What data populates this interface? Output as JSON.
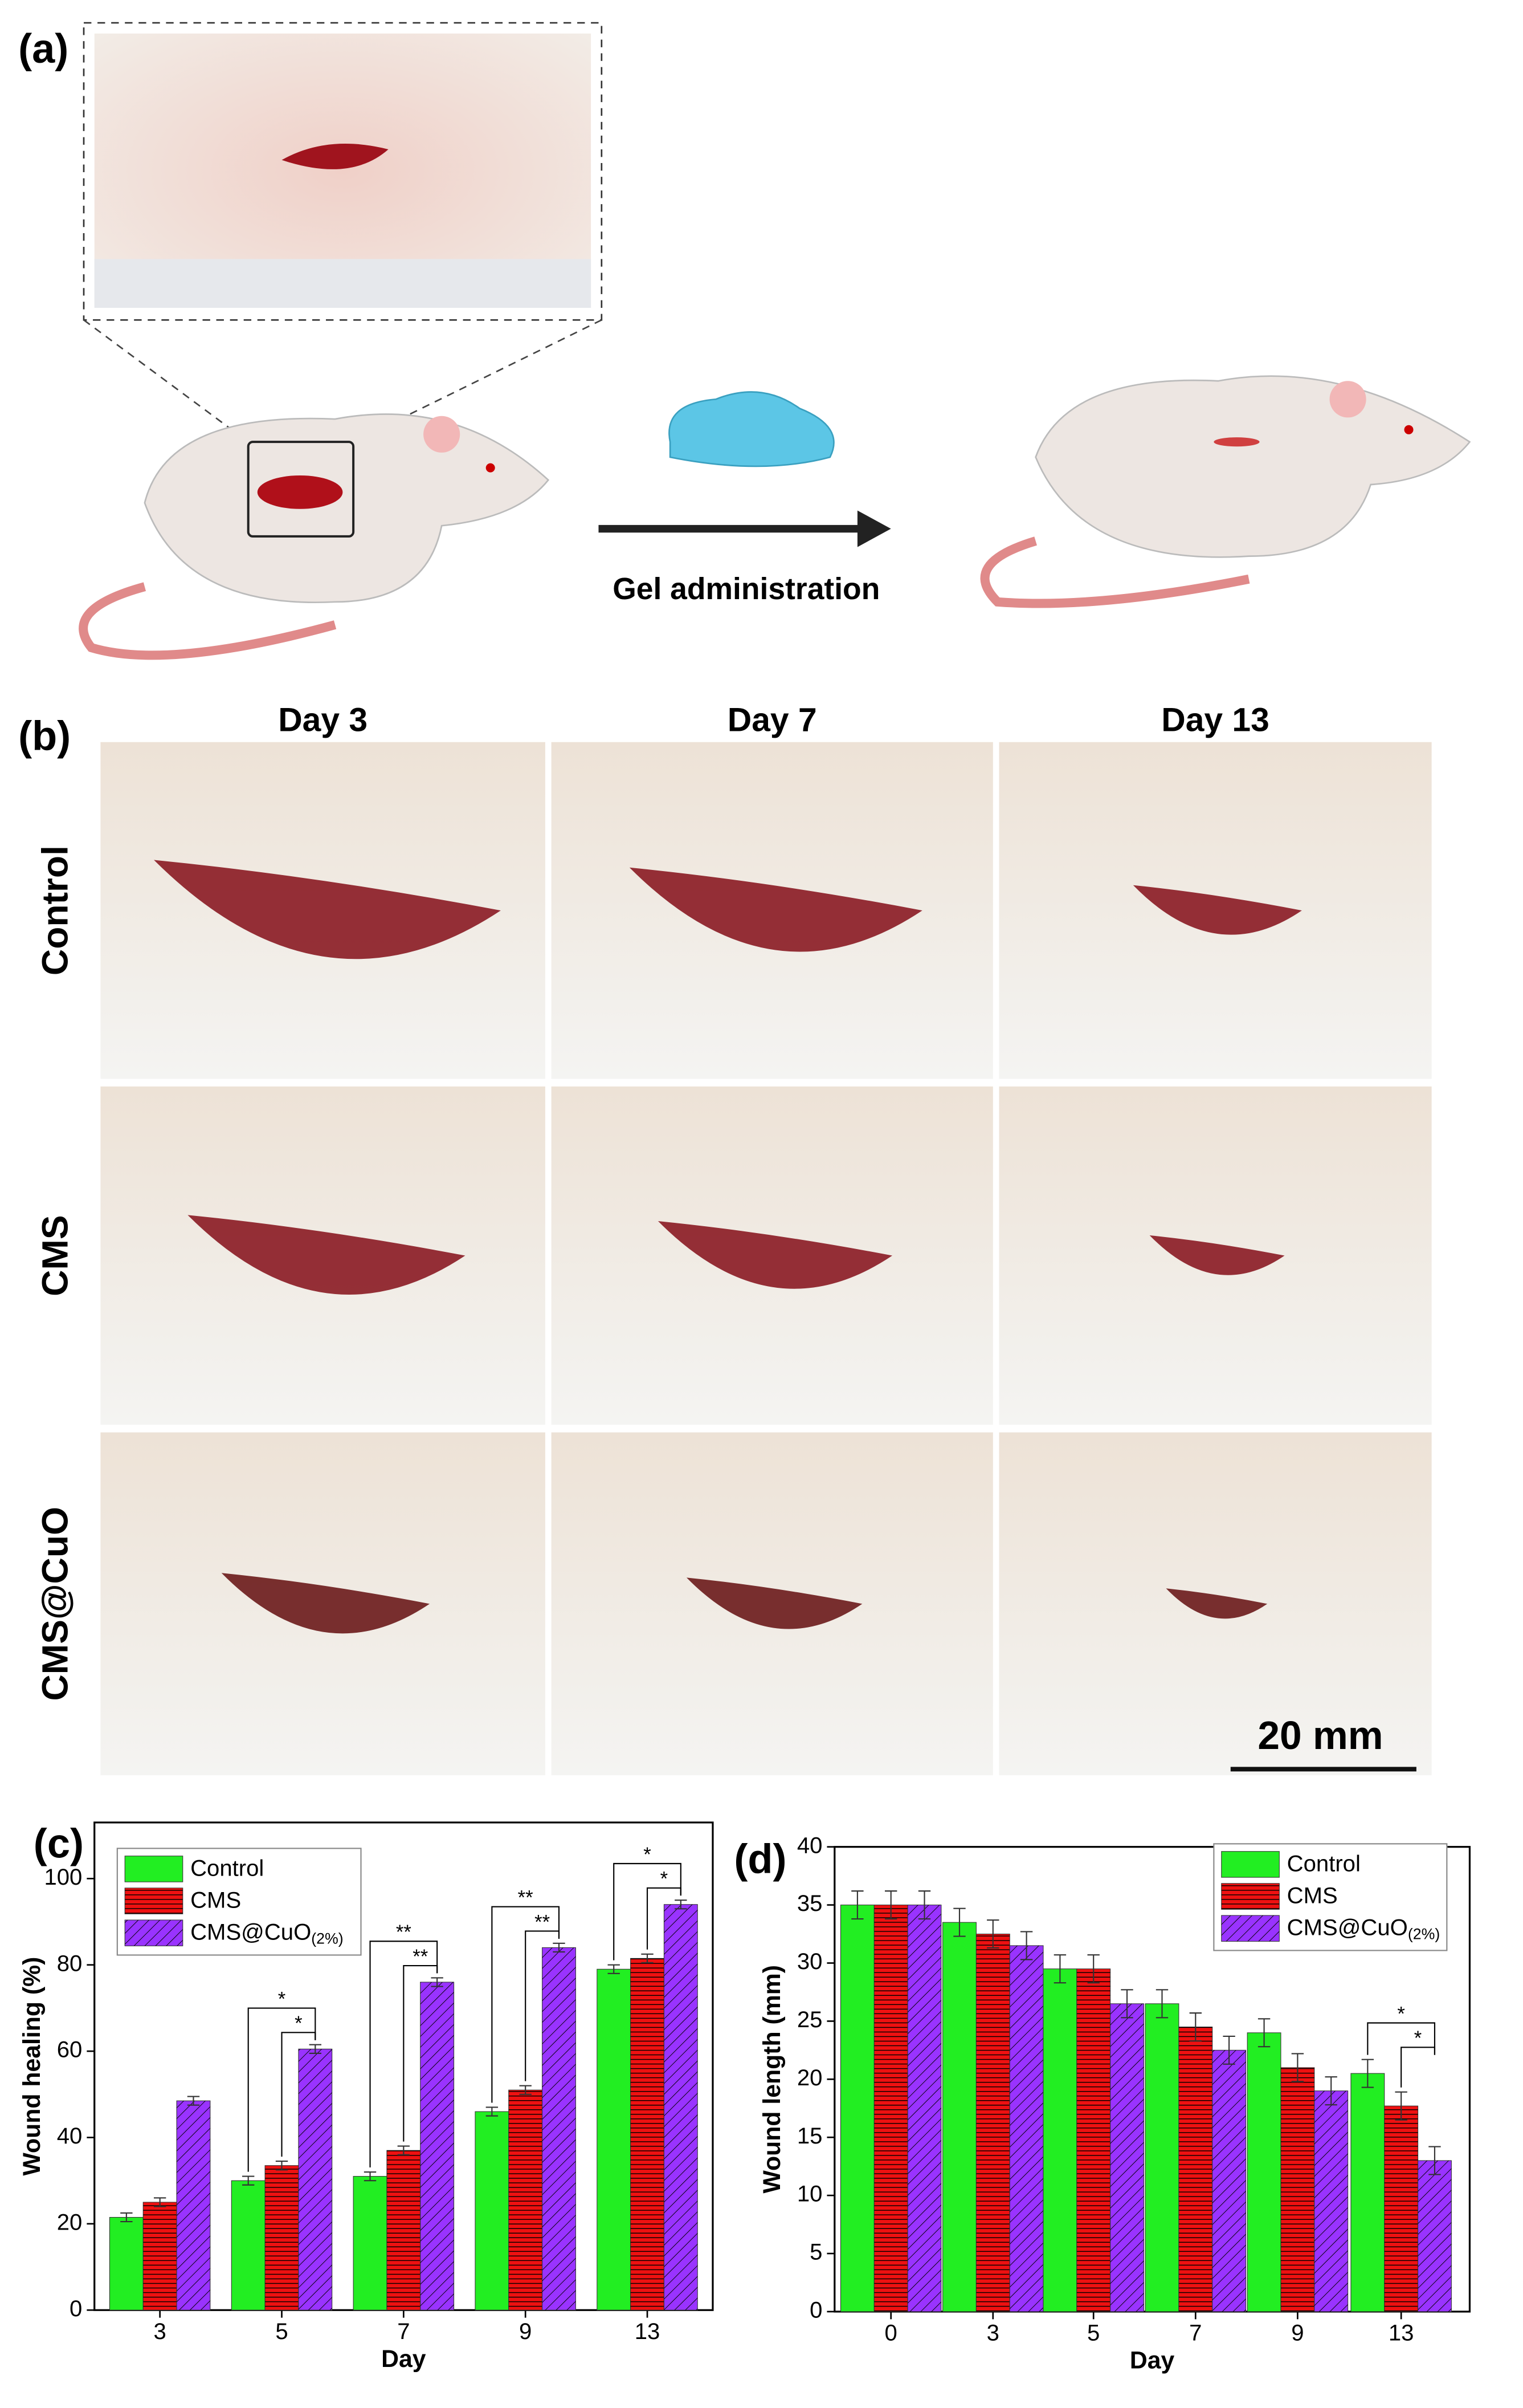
{
  "figure": {
    "panel_a": "(a)",
    "gel_label": "Gel administration",
    "panel_b": "(b)",
    "days": [
      "Day 3",
      "Day 7",
      "Day 13"
    ],
    "groups": [
      "Control",
      "CMS",
      "CMS@CuO"
    ],
    "scale_bar": "20 mm"
  },
  "chart_data": [
    {
      "type": "bar",
      "panel": "(c)",
      "xlabel": "Day",
      "ylabel": "Wound healing (%)",
      "categories": [
        "3",
        "5",
        "7",
        "9",
        "13"
      ],
      "series": [
        {
          "name": "Control",
          "color": "#22ee22",
          "values": [
            21.5,
            30,
            31,
            46,
            79
          ],
          "errors": [
            1,
            1,
            1,
            1,
            1
          ]
        },
        {
          "name": "CMS",
          "color": "#ee1111",
          "values": [
            25,
            33.5,
            37,
            51,
            81.5
          ],
          "errors": [
            1,
            1,
            1,
            1,
            1
          ]
        },
        {
          "name": "CMS@CuO(2%)",
          "color": "#9933ff",
          "values": [
            48.5,
            60.5,
            76,
            84,
            94
          ],
          "errors": [
            1,
            1,
            1,
            1,
            1
          ]
        }
      ],
      "ylim": [
        0,
        113
      ],
      "yticks": [
        0,
        20,
        40,
        60,
        80,
        100
      ],
      "legend": "upper left",
      "annotations": [
        {
          "category": "5",
          "outer": "*",
          "inner": "*"
        },
        {
          "category": "7",
          "outer": "**",
          "inner": "**"
        },
        {
          "category": "9",
          "outer": "**",
          "inner": "**"
        },
        {
          "category": "13",
          "outer": "*",
          "inner": "*"
        }
      ]
    },
    {
      "type": "bar",
      "panel": "(d)",
      "xlabel": "Day",
      "ylabel": "Wound length (mm)",
      "categories": [
        "0",
        "3",
        "5",
        "7",
        "9",
        "13"
      ],
      "series": [
        {
          "name": "Control",
          "color": "#22ee22",
          "values": [
            35,
            33.5,
            29.5,
            26.5,
            24,
            20.5
          ],
          "errors": [
            1.2,
            1.2,
            1.2,
            1.2,
            1.2,
            1.2
          ]
        },
        {
          "name": "CMS",
          "color": "#ee1111",
          "values": [
            35,
            32.5,
            29.5,
            24.5,
            21,
            17.7
          ],
          "errors": [
            1.2,
            1.2,
            1.2,
            1.2,
            1.2,
            1.2
          ]
        },
        {
          "name": "CMS@CuO(2%)",
          "color": "#9933ff",
          "values": [
            35,
            31.5,
            26.5,
            22.5,
            19,
            13
          ],
          "errors": [
            1.2,
            1.2,
            1.2,
            1.2,
            1.2,
            1.2
          ]
        }
      ],
      "ylim": [
        0,
        40
      ],
      "yticks": [
        0,
        5,
        10,
        15,
        20,
        25,
        30,
        35,
        40
      ],
      "legend": "upper right",
      "annotations": [
        {
          "category": "13",
          "outer": "*",
          "inner": "*"
        }
      ]
    }
  ]
}
